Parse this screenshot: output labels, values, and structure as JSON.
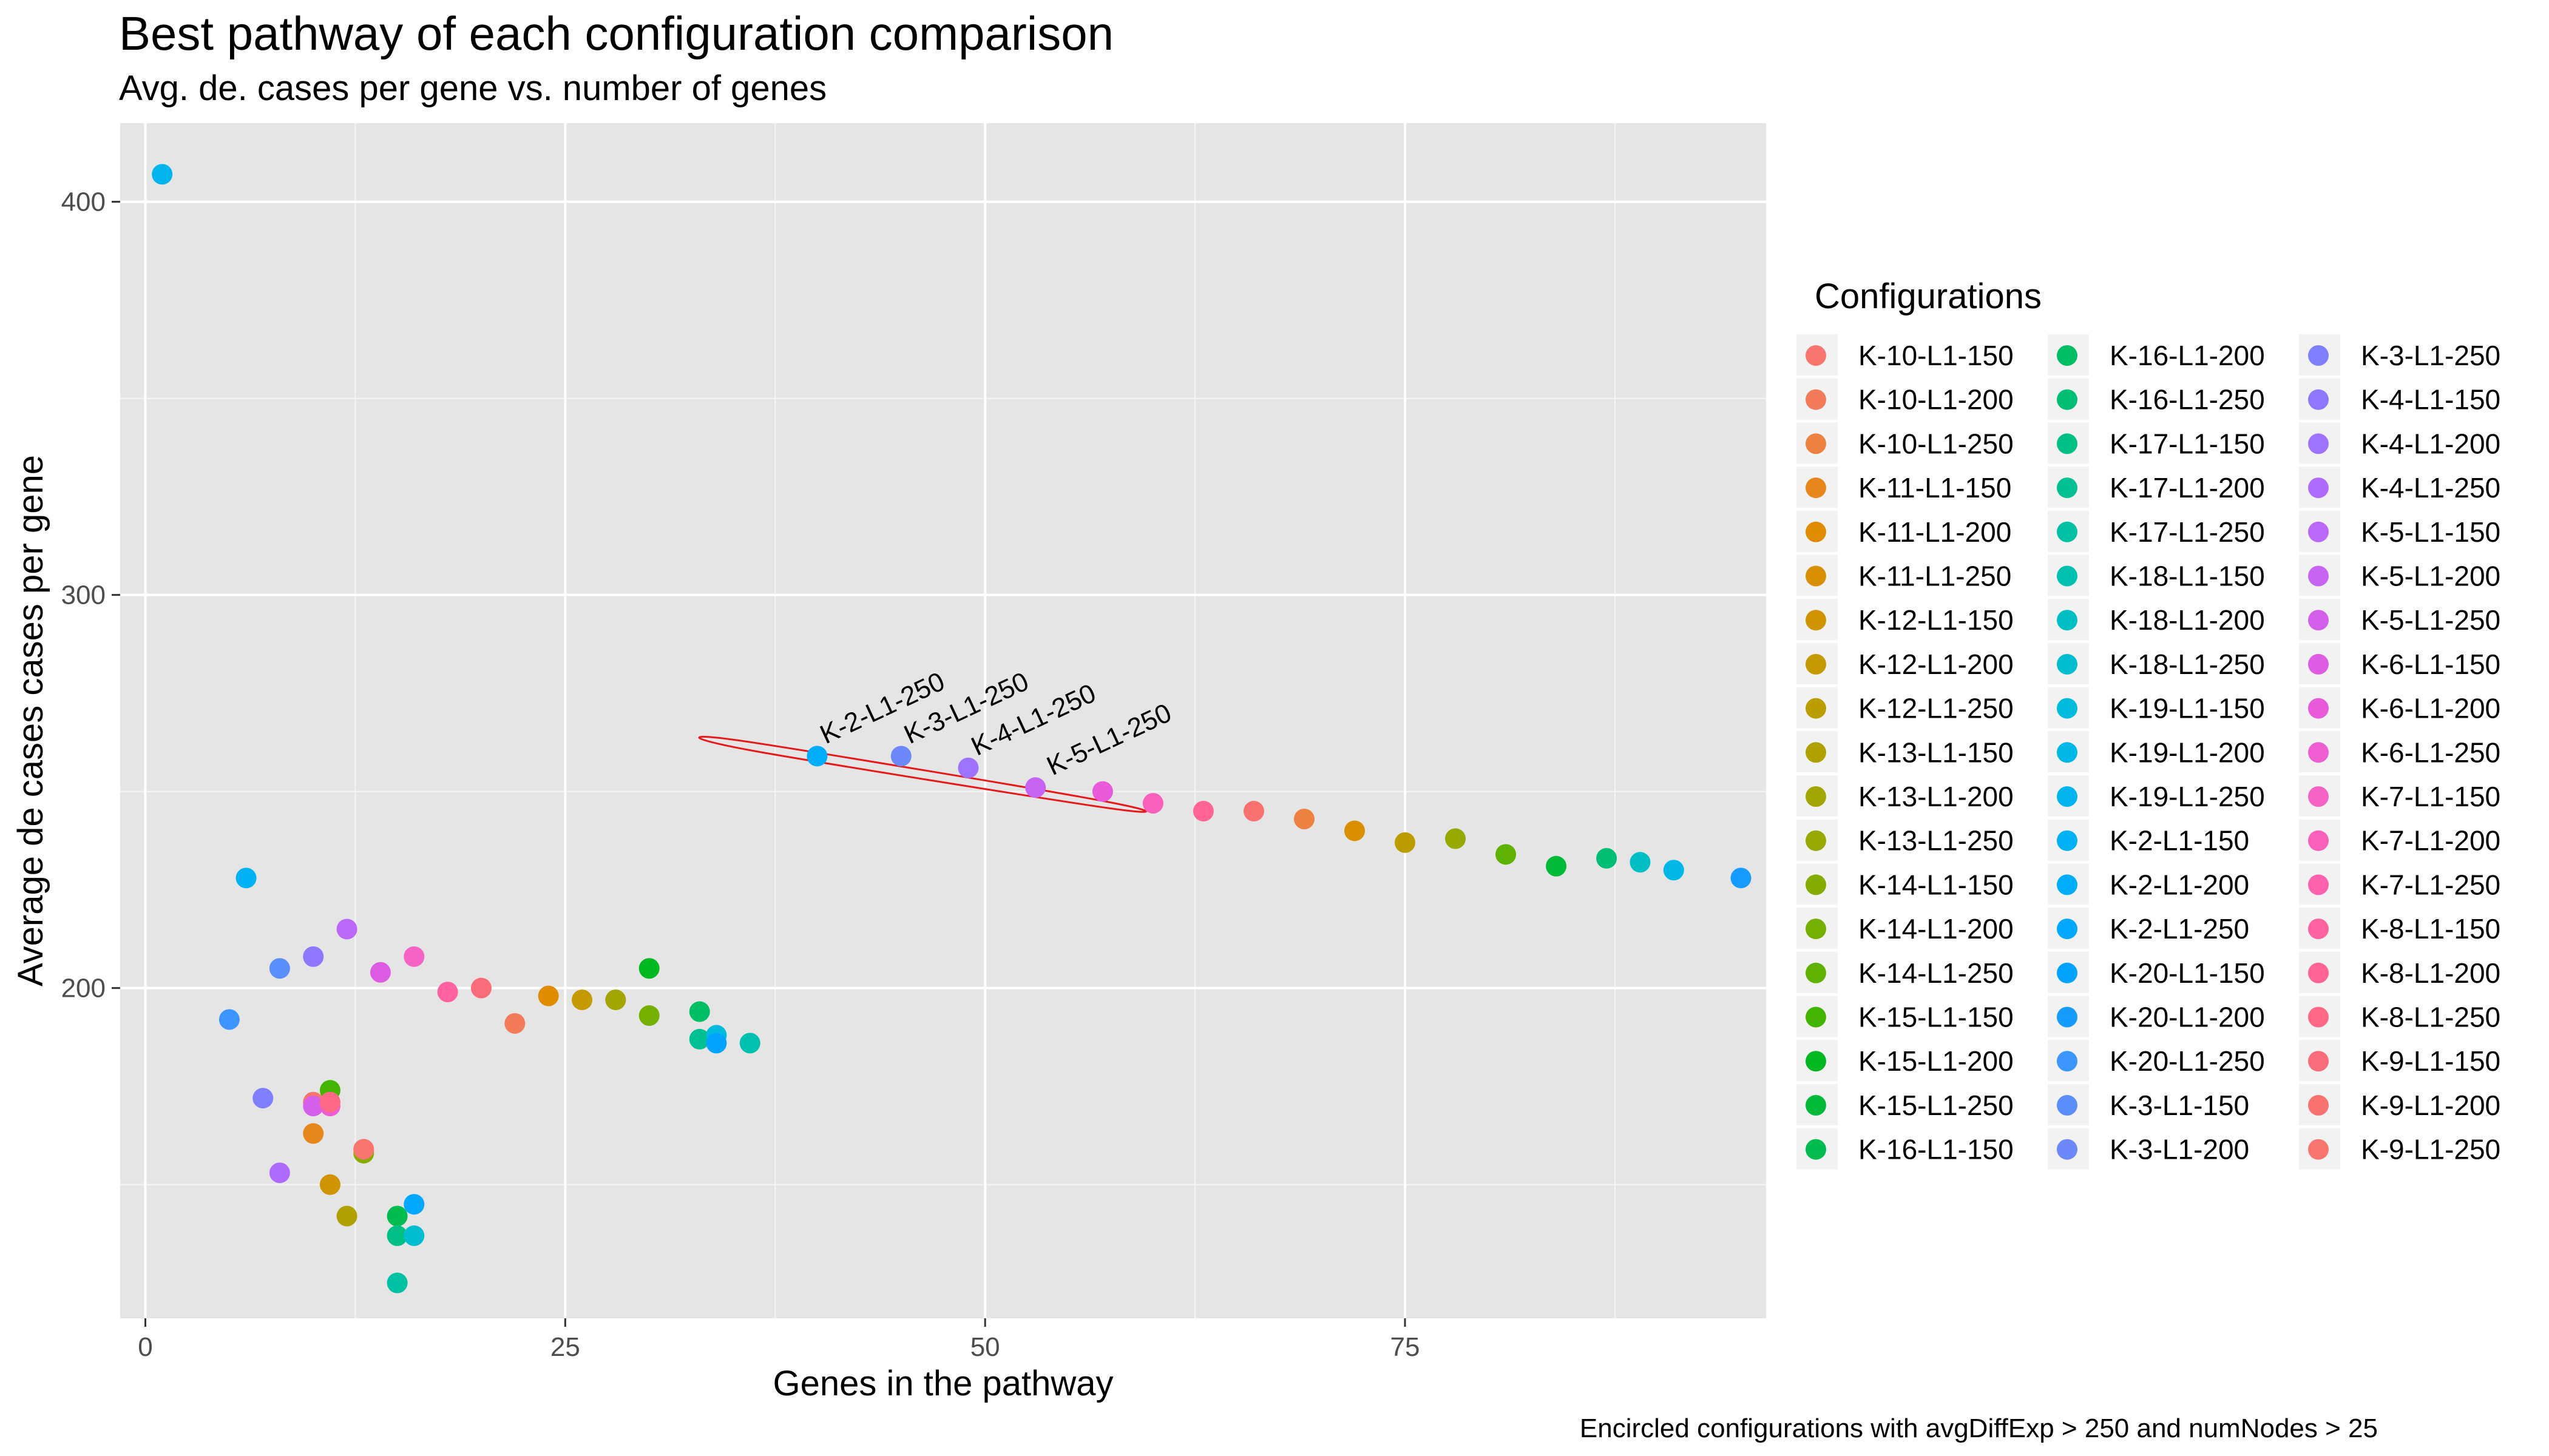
{
  "title": "Best pathway of each configuration comparison",
  "subtitle": "Avg. de. cases per gene vs. number of genes",
  "caption": "Encircled configurations with avgDiffExp > 250 and numNodes > 25",
  "legend_title": "Configurations",
  "chart_data": {
    "type": "scatter",
    "xlabel": "Genes in the pathway",
    "ylabel": "Average de cases cases per gene",
    "xlim": [
      -1.5,
      96.5
    ],
    "ylim": [
      116,
      420
    ],
    "x_ticks": [
      0,
      25,
      50,
      75
    ],
    "y_ticks": [
      200,
      300,
      400
    ],
    "grid": true,
    "legend_position": "right",
    "series": [
      {
        "name": "K-10-L1-150",
        "color": "#F8766D",
        "x": [
          10
        ],
        "y": [
          171
        ]
      },
      {
        "name": "K-10-L1-200",
        "color": "#F37B59",
        "x": [
          22
        ],
        "y": [
          191
        ]
      },
      {
        "name": "K-10-L1-250",
        "color": "#ED8141",
        "x": [
          69
        ],
        "y": [
          243
        ]
      },
      {
        "name": "K-11-L1-150",
        "color": "#E7861B",
        "x": [
          10
        ],
        "y": [
          163
        ]
      },
      {
        "name": "K-11-L1-200",
        "color": "#DF8C00",
        "x": [
          24
        ],
        "y": [
          198
        ]
      },
      {
        "name": "K-11-L1-250",
        "color": "#D89000",
        "x": [
          72
        ],
        "y": [
          240
        ]
      },
      {
        "name": "K-12-L1-150",
        "color": "#CF9400",
        "x": [
          11
        ],
        "y": [
          150
        ]
      },
      {
        "name": "K-12-L1-200",
        "color": "#C59900",
        "x": [
          26
        ],
        "y": [
          197
        ]
      },
      {
        "name": "K-12-L1-250",
        "color": "#BB9D00",
        "x": [
          75
        ],
        "y": [
          237
        ]
      },
      {
        "name": "K-13-L1-150",
        "color": "#B0A100",
        "x": [
          12
        ],
        "y": [
          142
        ]
      },
      {
        "name": "K-13-L1-200",
        "color": "#A3A500",
        "x": [
          28
        ],
        "y": [
          197
        ]
      },
      {
        "name": "K-13-L1-250",
        "color": "#95A900",
        "x": [
          78
        ],
        "y": [
          238
        ]
      },
      {
        "name": "K-14-L1-150",
        "color": "#86AC00",
        "x": [
          13
        ],
        "y": [
          158
        ]
      },
      {
        "name": "K-14-L1-200",
        "color": "#75AF00",
        "x": [
          30
        ],
        "y": [
          193
        ]
      },
      {
        "name": "K-14-L1-250",
        "color": "#5FB200",
        "x": [
          81
        ],
        "y": [
          234
        ]
      },
      {
        "name": "K-15-L1-150",
        "color": "#43B500",
        "x": [
          11
        ],
        "y": [
          174
        ]
      },
      {
        "name": "K-15-L1-200",
        "color": "#00B81F",
        "x": [
          30
        ],
        "y": [
          205
        ]
      },
      {
        "name": "K-15-L1-250",
        "color": "#00BA38",
        "x": [
          84
        ],
        "y": [
          231
        ]
      },
      {
        "name": "K-16-L1-150",
        "color": "#00BC4F",
        "x": [
          15
        ],
        "y": [
          142
        ]
      },
      {
        "name": "K-16-L1-200",
        "color": "#00BE63",
        "x": [
          33
        ],
        "y": [
          194
        ]
      },
      {
        "name": "K-16-L1-250",
        "color": "#00BF74",
        "x": [
          87
        ],
        "y": [
          233
        ]
      },
      {
        "name": "K-17-L1-150",
        "color": "#00C085",
        "x": [
          15
        ],
        "y": [
          137
        ]
      },
      {
        "name": "K-17-L1-200",
        "color": "#00C094",
        "x": [
          33
        ],
        "y": [
          187
        ]
      },
      {
        "name": "K-17-L1-250",
        "color": "#00C1A3",
        "x": [
          15
        ],
        "y": [
          125
        ]
      },
      {
        "name": "K-18-L1-150",
        "color": "#00C0B0",
        "x": [
          36
        ],
        "y": [
          186
        ]
      },
      {
        "name": "K-18-L1-200",
        "color": "#00BFC4",
        "x": [
          89
        ],
        "y": [
          232
        ]
      },
      {
        "name": "K-18-L1-250",
        "color": "#00BDD0",
        "x": [
          16
        ],
        "y": [
          137
        ]
      },
      {
        "name": "K-19-L1-150",
        "color": "#00BBDC",
        "x": [
          34
        ],
        "y": [
          188
        ]
      },
      {
        "name": "K-19-L1-200",
        "color": "#00B8E7",
        "x": [
          91
        ],
        "y": [
          230
        ]
      },
      {
        "name": "K-19-L1-250",
        "color": "#00B5EE",
        "x": [
          1
        ],
        "y": [
          407
        ]
      },
      {
        "name": "K-2-L1-150",
        "color": "#00B1F3",
        "x": [
          6
        ],
        "y": [
          228
        ]
      },
      {
        "name": "K-2-L1-200",
        "color": "#00ADFA",
        "x": [
          40
        ],
        "y": [
          259
        ]
      },
      {
        "name": "K-2-L1-250",
        "color": "#00A9FF",
        "x": [
          16
        ],
        "y": [
          145
        ]
      },
      {
        "name": "K-20-L1-150",
        "color": "#00A3FF",
        "x": [
          34
        ],
        "y": [
          186
        ]
      },
      {
        "name": "K-20-L1-200",
        "color": "#169CFF",
        "x": [
          95
        ],
        "y": [
          228
        ]
      },
      {
        "name": "K-20-L1-250",
        "color": "#3D95FF",
        "x": [
          5
        ],
        "y": [
          192
        ]
      },
      {
        "name": "K-3-L1-150",
        "color": "#5B8EFD",
        "x": [
          8
        ],
        "y": [
          205
        ]
      },
      {
        "name": "K-3-L1-200",
        "color": "#6C88FB",
        "x": [
          45
        ],
        "y": [
          259
        ]
      },
      {
        "name": "K-3-L1-250",
        "color": "#7F80FF",
        "x": [
          7
        ],
        "y": [
          172
        ]
      },
      {
        "name": "K-4-L1-150",
        "color": "#8F78FF",
        "x": [
          10
        ],
        "y": [
          208
        ]
      },
      {
        "name": "K-4-L1-200",
        "color": "#9E73FF",
        "x": [
          49
        ],
        "y": [
          256
        ]
      },
      {
        "name": "K-4-L1-250",
        "color": "#AD6CFF",
        "x": [
          8
        ],
        "y": [
          153
        ]
      },
      {
        "name": "K-5-L1-150",
        "color": "#BA68F8",
        "x": [
          12
        ],
        "y": [
          215
        ]
      },
      {
        "name": "K-5-L1-200",
        "color": "#C663F2",
        "x": [
          53
        ],
        "y": [
          251
        ]
      },
      {
        "name": "K-5-L1-250",
        "color": "#D35FEB",
        "x": [
          10
        ],
        "y": [
          170
        ]
      },
      {
        "name": "K-6-L1-150",
        "color": "#DE5CE4",
        "x": [
          14
        ],
        "y": [
          204
        ]
      },
      {
        "name": "K-6-L1-200",
        "color": "#E85ADA",
        "x": [
          57
        ],
        "y": [
          250
        ]
      },
      {
        "name": "K-6-L1-250",
        "color": "#EF5ED0",
        "x": [
          11
        ],
        "y": [
          170
        ]
      },
      {
        "name": "K-7-L1-150",
        "color": "#F564C4",
        "x": [
          16
        ],
        "y": [
          208
        ]
      },
      {
        "name": "K-7-L1-200",
        "color": "#FA5FB9",
        "x": [
          60
        ],
        "y": [
          247
        ]
      },
      {
        "name": "K-7-L1-250",
        "color": "#FD61AD",
        "x": [
          13
        ],
        "y": [
          159
        ]
      },
      {
        "name": "K-8-L1-150",
        "color": "#FF629F",
        "x": [
          18
        ],
        "y": [
          199
        ]
      },
      {
        "name": "K-8-L1-200",
        "color": "#FF6494",
        "x": [
          63
        ],
        "y": [
          245
        ]
      },
      {
        "name": "K-8-L1-250",
        "color": "#FE6885",
        "x": [
          11
        ],
        "y": [
          171
        ]
      },
      {
        "name": "K-9-L1-150",
        "color": "#FB6C7A",
        "x": [
          20
        ],
        "y": [
          200
        ]
      },
      {
        "name": "K-9-L1-200",
        "color": "#F87270",
        "x": [
          66
        ],
        "y": [
          245
        ]
      },
      {
        "name": "K-9-L1-250",
        "color": "#F8766D",
        "x": [
          13
        ],
        "y": [
          159
        ]
      }
    ],
    "annotations": [
      {
        "text": "K-2-L1-250",
        "x": 40.5,
        "y": 262
      },
      {
        "text": "K-3-L1-250",
        "x": 45.5,
        "y": 262
      },
      {
        "text": "K-4-L1-250",
        "x": 49.5,
        "y": 259
      },
      {
        "text": "K-5-L1-250",
        "x": 54,
        "y": 254
      }
    ],
    "ellipse": {
      "color": "#E41A1C",
      "points": [
        [
          35.3,
          263
        ],
        [
          36,
          260.5
        ],
        [
          57.3,
          245.8
        ],
        [
          56.5,
          248
        ]
      ]
    }
  }
}
